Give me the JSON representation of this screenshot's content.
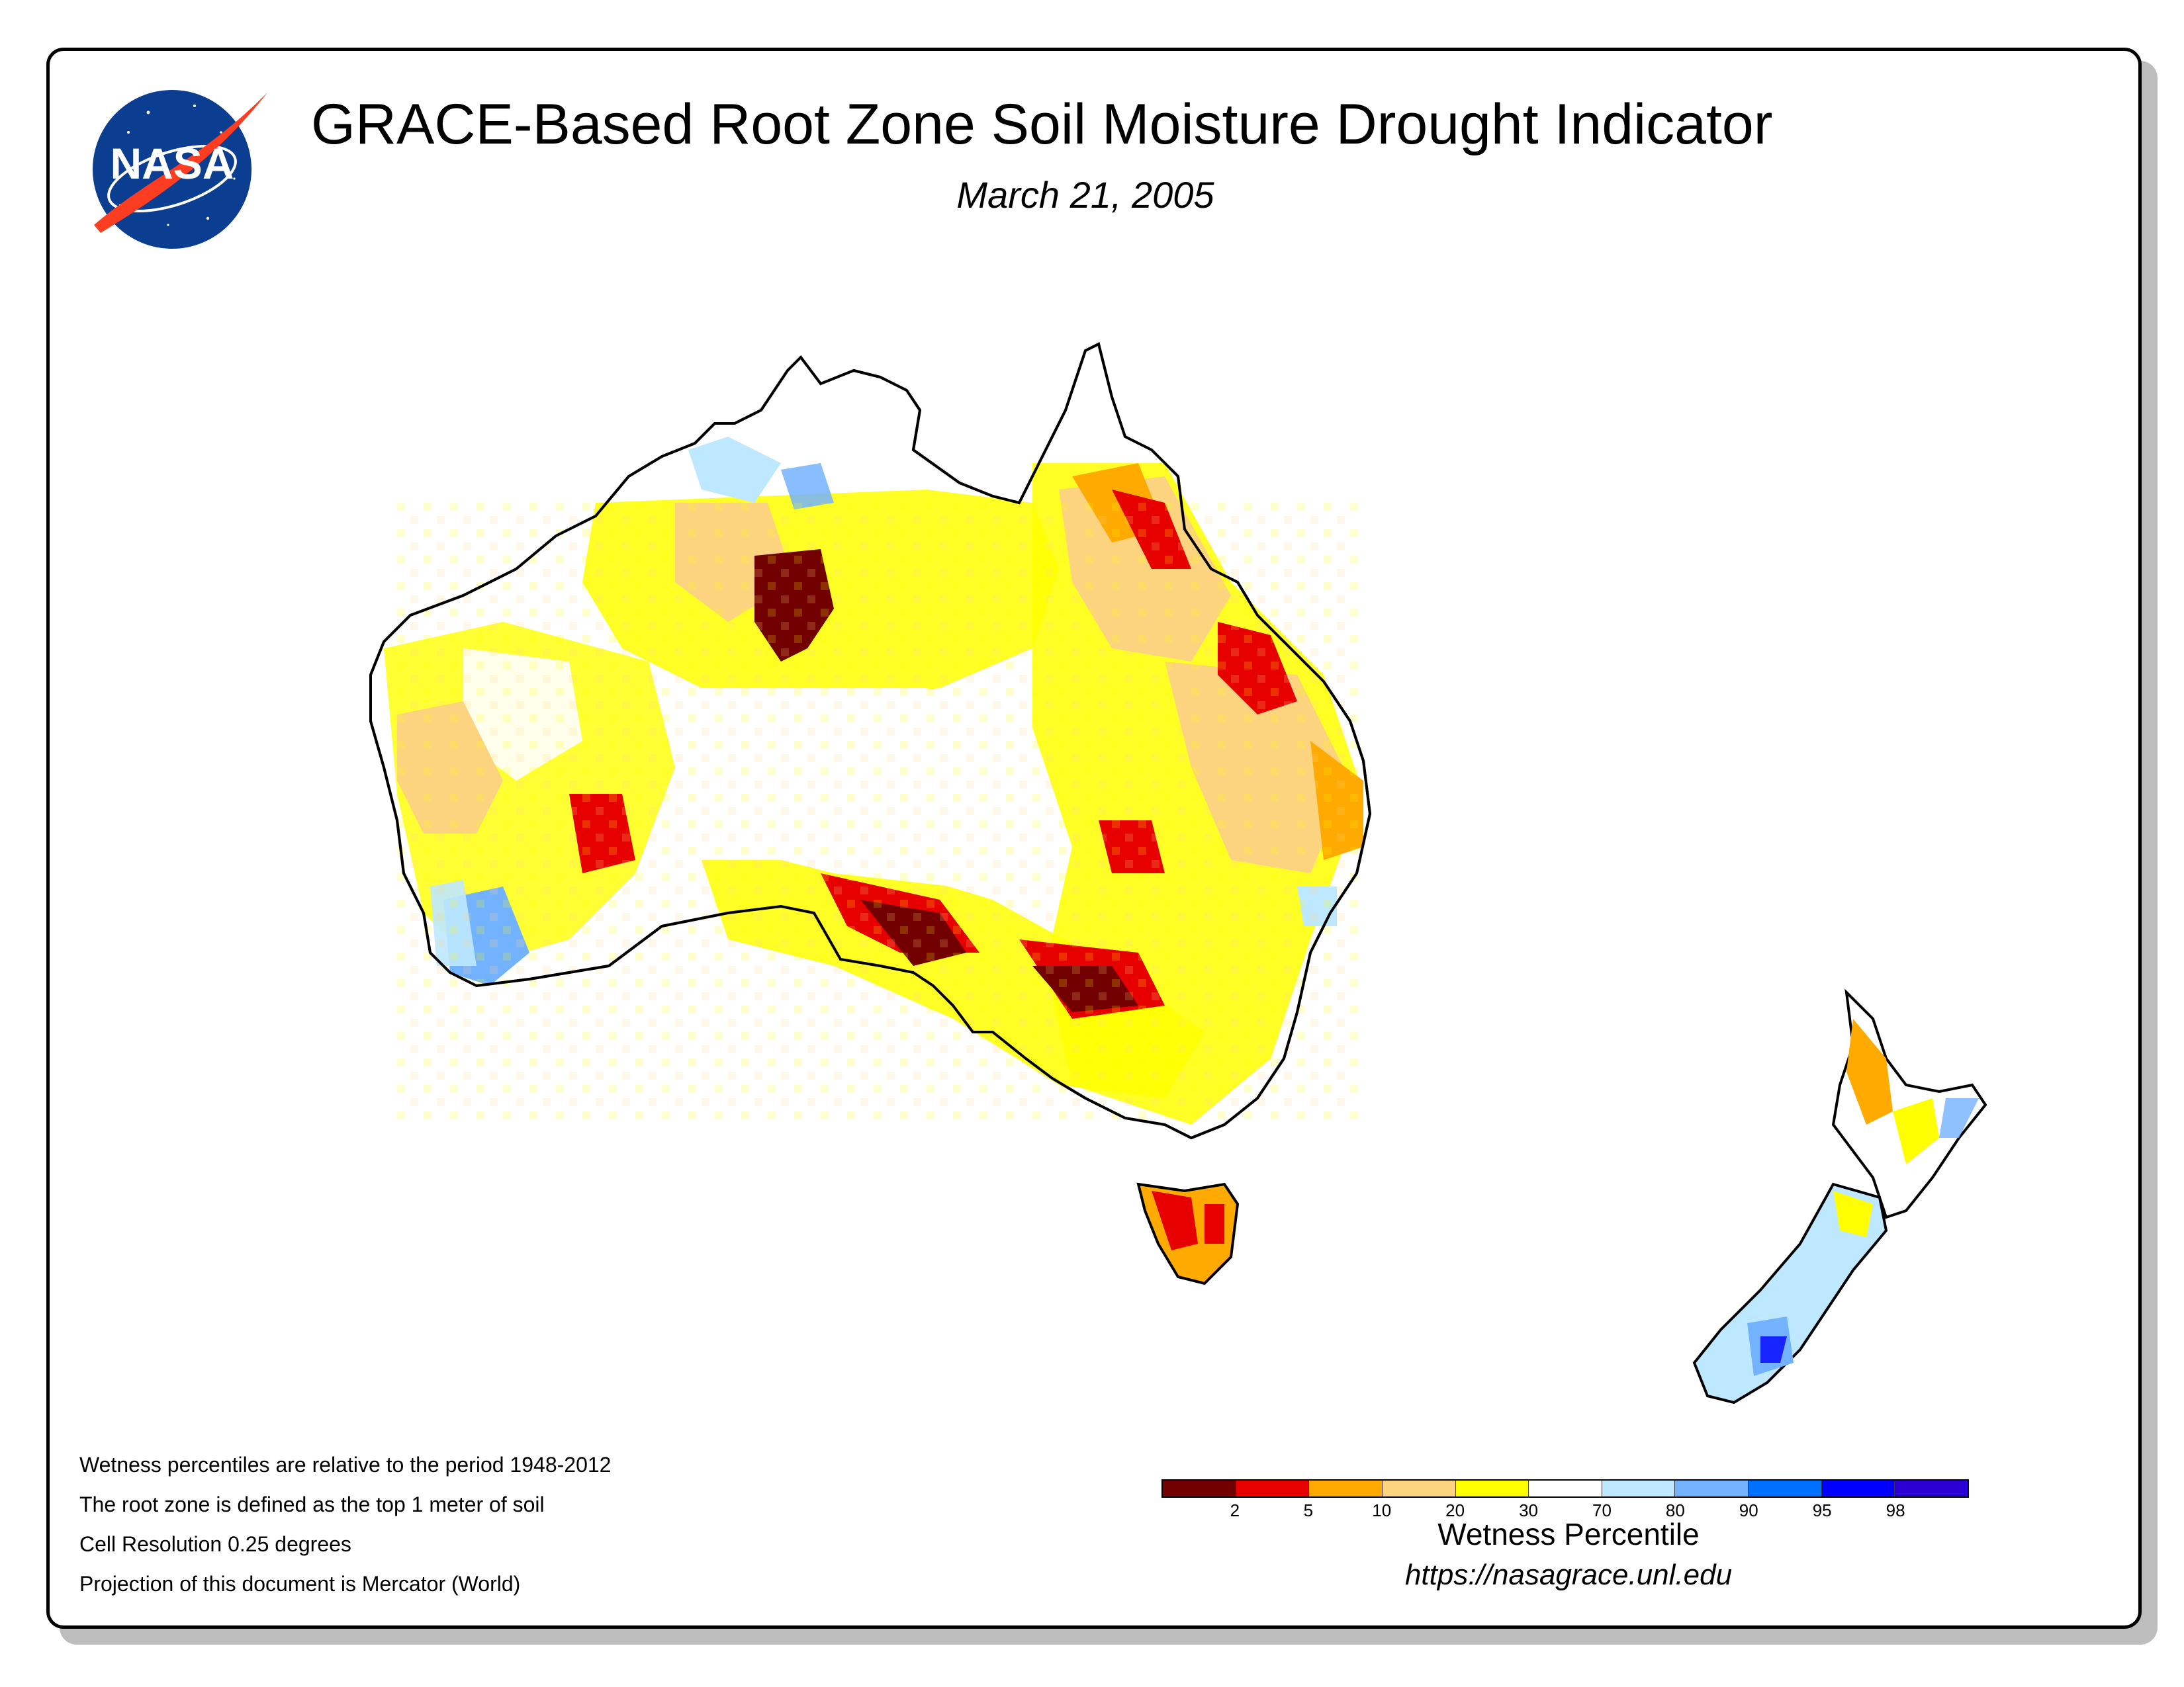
{
  "header": {
    "title": "GRACE-Based Root Zone Soil Moisture Drought Indicator",
    "date": "March 21, 2005",
    "logo_text": "NASA"
  },
  "notes": [
    "Wetness percentiles are relative to the period 1948-2012",
    "The root zone is defined as the top 1 meter of soil",
    "Cell Resolution 0.25 degrees",
    "Projection of this document is Mercator (World)"
  ],
  "legend": {
    "title": "Wetness Percentile",
    "url": "https://nasagrace.unl.edu",
    "colors": [
      "#730000",
      "#e60000",
      "#ffaa00",
      "#fcd37f",
      "#ffff00",
      "#ffffff",
      "#bee8ff",
      "#73b2ff",
      "#0070ff",
      "#0000ff",
      "#2a00d5"
    ],
    "tick_labels": [
      "2",
      "5",
      "10",
      "20",
      "30",
      "70",
      "80",
      "90",
      "95",
      "98"
    ]
  },
  "regions": {
    "australia": "Australia",
    "tasmania": "Tasmania",
    "new_zealand_north": "New Zealand North Island",
    "new_zealand_south": "New Zealand South Island"
  },
  "colors": {
    "frame": "#000000",
    "shadow": "#bdbdbd",
    "nasa_blue": "#0b3d91",
    "nasa_red": "#fc3d21"
  }
}
